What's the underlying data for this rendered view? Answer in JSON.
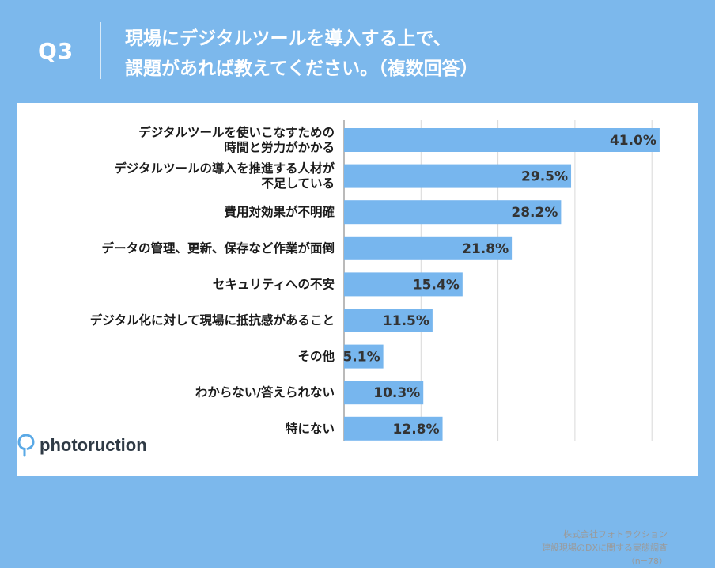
{
  "header": {
    "q_number": "Q3",
    "question_line1": "現場にデジタルツールを導入する上で、",
    "question_line2": "課題があれば教えてください。（複数回答）"
  },
  "brand": {
    "name": "photoruction"
  },
  "source": {
    "company": "株式会社フォトラクション",
    "survey": "建設現場のDXに関する実態調査",
    "sample": "（n=78）"
  },
  "colors": {
    "accent": "#7cb8ec",
    "bar": "#77b6ee"
  },
  "chart_data": {
    "type": "bar",
    "orientation": "horizontal",
    "title": "現場にデジタルツールを導入する上で、課題があれば教えてください。（複数回答）",
    "unit": "%",
    "xlim": [
      0,
      50
    ],
    "grid": true,
    "categories": [
      [
        "デジタルツールを使いこなすための",
        "時間と労力がかかる"
      ],
      [
        "デジタルツールの導入を推進する人材が",
        "不足している"
      ],
      [
        "費用対効果が不明確"
      ],
      [
        "データの管理、更新、保存など作業が面倒"
      ],
      [
        "セキュリティへの不安"
      ],
      [
        "デジタル化に対して現場に抵抗感があること"
      ],
      [
        "その他"
      ],
      [
        "わからない/答えられない"
      ],
      [
        "特にない"
      ]
    ],
    "values": [
      41.0,
      29.5,
      28.2,
      21.8,
      15.4,
      11.5,
      5.1,
      10.3,
      12.8
    ],
    "value_labels": [
      "41.0%",
      "29.5%",
      "28.2%",
      "21.8%",
      "15.4%",
      "11.5%",
      "5.1%",
      "10.3%",
      "12.8%"
    ]
  }
}
